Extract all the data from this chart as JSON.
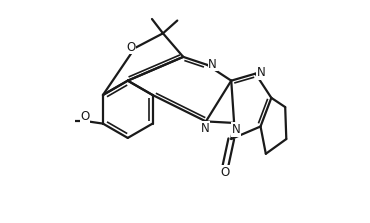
{
  "bg_color": "#ffffff",
  "line_color": "#1a1a1a",
  "line_width": 1.6,
  "figsize": [
    3.7,
    2.23
  ],
  "dpi": 100,
  "xlim": [
    0.0,
    1.0
  ],
  "ylim": [
    0.0,
    1.0
  ]
}
